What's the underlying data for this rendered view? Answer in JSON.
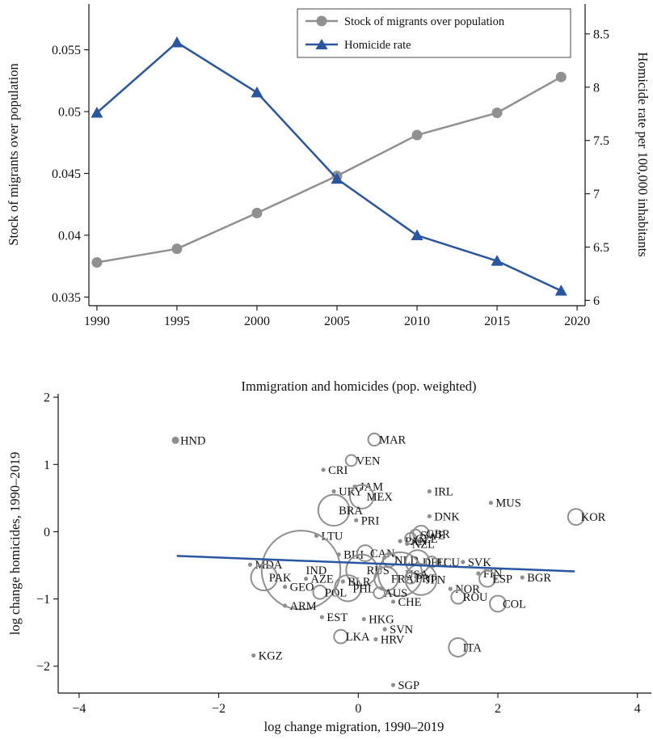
{
  "chart_data": [
    {
      "type": "line",
      "x": [
        1990,
        1995,
        2000,
        2005,
        2010,
        2015,
        2019
      ],
      "series": [
        {
          "name": "Stock of migrants over population",
          "axis": "left",
          "color": "#909090",
          "marker": "circle",
          "values": [
            0.0378,
            0.0389,
            0.0418,
            0.0448,
            0.0481,
            0.0499,
            0.0528
          ]
        },
        {
          "name": "Homicide rate",
          "axis": "right",
          "color": "#2a55a0",
          "marker": "triangle",
          "values": [
            7.76,
            8.42,
            7.95,
            7.14,
            6.61,
            6.37,
            6.09
          ]
        }
      ],
      "xlim": [
        1989.5,
        2020.5
      ],
      "ylim": [
        0.0343,
        0.0587
      ],
      "y2lim": [
        5.95,
        8.78
      ],
      "xticks": [
        "1990",
        "1995",
        "2000",
        "2005",
        "2010",
        "2015",
        "2020"
      ],
      "yticks": [
        "0.035",
        "0.04",
        "0.045",
        "0.05",
        "0.055"
      ],
      "y2ticks": [
        "6",
        "6.5",
        "7",
        "7.5",
        "8",
        "8.5"
      ],
      "xlabel": "",
      "ylabel": "Stock of migrants over population",
      "y2label": "Homicide rate per 100,000 inhabitants",
      "legend": "top-right",
      "grid": false
    },
    {
      "type": "scatter",
      "title": "Immigration and homicides (pop. weighted)",
      "xlabel": "log change migration, 1990–2019",
      "ylabel": "log change homicides, 1990–2019",
      "xlim": [
        -4.3,
        4.2
      ],
      "ylim": [
        -2.4,
        2.05
      ],
      "xticks": [
        "−4",
        "−2",
        "0",
        "2",
        "4"
      ],
      "yticks": [
        "−2",
        "−1",
        "0",
        "1",
        "2"
      ],
      "grid": false,
      "marker_color": "#8f8f8f",
      "fit_color": "#2a55a0",
      "fit_line": {
        "x": [
          -2.6,
          3.1
        ],
        "y": [
          -0.36,
          -0.59
        ]
      },
      "points": [
        {
          "label": "HND",
          "x": -2.62,
          "y": 1.36,
          "size": 1.5
        },
        {
          "label": "MAR",
          "x": 0.23,
          "y": 1.37,
          "size": 3.5
        },
        {
          "label": "VEN",
          "x": -0.1,
          "y": 1.06,
          "size": 3
        },
        {
          "label": "CRI",
          "x": -0.5,
          "y": 0.92,
          "size": 1
        },
        {
          "label": "JAM",
          "x": -0.05,
          "y": 0.67,
          "size": 1
        },
        {
          "label": "URY",
          "x": -0.35,
          "y": 0.6,
          "size": 1
        },
        {
          "label": "MEX",
          "x": 0.05,
          "y": 0.52,
          "size": 8
        },
        {
          "label": "IRL",
          "x": 1.02,
          "y": 0.6,
          "size": 1
        },
        {
          "label": "MUS",
          "x": 1.9,
          "y": 0.43,
          "size": 1
        },
        {
          "label": "KOR",
          "x": 3.12,
          "y": 0.22,
          "size": 5
        },
        {
          "label": "BRA",
          "x": -0.35,
          "y": 0.32,
          "size": 11
        },
        {
          "label": "PRI",
          "x": -0.03,
          "y": 0.17,
          "size": 1
        },
        {
          "label": "DNK",
          "x": 1.02,
          "y": 0.23,
          "size": 1
        },
        {
          "label": "LTU",
          "x": -0.6,
          "y": -0.06,
          "size": 1
        },
        {
          "label": "SWE",
          "x": 0.82,
          "y": -0.05,
          "size": 3
        },
        {
          "label": "CZE",
          "x": 0.75,
          "y": -0.1,
          "size": 3
        },
        {
          "label": "GBR",
          "x": 0.9,
          "y": -0.03,
          "size": 5
        },
        {
          "label": "PAN",
          "x": 0.6,
          "y": -0.14,
          "size": 1
        },
        {
          "label": "NZL",
          "x": 0.7,
          "y": -0.18,
          "size": 1
        },
        {
          "label": "BIH",
          "x": -0.28,
          "y": -0.34,
          "size": 1
        },
        {
          "label": "CAN",
          "x": 0.1,
          "y": -0.32,
          "size": 5
        },
        {
          "label": "NLD",
          "x": 0.45,
          "y": -0.42,
          "size": 4
        },
        {
          "label": "DEU",
          "x": 0.85,
          "y": -0.45,
          "size": 8
        },
        {
          "label": "ECU",
          "x": 1.05,
          "y": -0.45,
          "size": 3
        },
        {
          "label": "SVK",
          "x": 1.5,
          "y": -0.45,
          "size": 1
        },
        {
          "label": "MDA",
          "x": -1.55,
          "y": -0.49,
          "size": 1
        },
        {
          "label": "IND",
          "x": -0.82,
          "y": -0.57,
          "size": 30
        },
        {
          "label": "RUS",
          "x": 0.05,
          "y": -0.57,
          "size": 11
        },
        {
          "label": "USA",
          "x": 0.6,
          "y": -0.63,
          "size": 16
        },
        {
          "label": "FIN",
          "x": 1.72,
          "y": -0.62,
          "size": 1
        },
        {
          "label": "PAK",
          "x": -1.35,
          "y": -0.68,
          "size": 9
        },
        {
          "label": "AZE",
          "x": -0.75,
          "y": -0.7,
          "size": 1
        },
        {
          "label": "BLR",
          "x": -0.22,
          "y": -0.74,
          "size": 1
        },
        {
          "label": "FRA",
          "x": 0.4,
          "y": -0.7,
          "size": 8
        },
        {
          "label": "PRT",
          "x": 0.75,
          "y": -0.69,
          "size": 3
        },
        {
          "label": "JPN",
          "x": 0.9,
          "y": -0.71,
          "size": 11
        },
        {
          "label": "ESP",
          "x": 1.85,
          "y": -0.7,
          "size": 5
        },
        {
          "label": "BGR",
          "x": 2.35,
          "y": -0.68,
          "size": 1
        },
        {
          "label": "GEO",
          "x": -1.05,
          "y": -0.82,
          "size": 1
        },
        {
          "label": "POL",
          "x": -0.55,
          "y": -0.9,
          "size": 4
        },
        {
          "label": "PHL",
          "x": -0.15,
          "y": -0.84,
          "size": 9
        },
        {
          "label": "AUS",
          "x": 0.3,
          "y": -0.91,
          "size": 3
        },
        {
          "label": "NOR",
          "x": 1.32,
          "y": -0.85,
          "size": 1
        },
        {
          "label": "ROU",
          "x": 1.43,
          "y": -0.97,
          "size": 4
        },
        {
          "label": "COL",
          "x": 2.0,
          "y": -1.07,
          "size": 5
        },
        {
          "label": "CHE",
          "x": 0.5,
          "y": -1.04,
          "size": 1
        },
        {
          "label": "ARM",
          "x": -1.05,
          "y": -1.1,
          "size": 1
        },
        {
          "label": "EST",
          "x": -0.52,
          "y": -1.27,
          "size": 1
        },
        {
          "label": "HKG",
          "x": 0.08,
          "y": -1.3,
          "size": 1
        },
        {
          "label": "SVN",
          "x": 0.38,
          "y": -1.45,
          "size": 1
        },
        {
          "label": "LKA",
          "x": -0.25,
          "y": -1.56,
          "size": 4
        },
        {
          "label": "HRV",
          "x": 0.25,
          "y": -1.6,
          "size": 1
        },
        {
          "label": "ITA",
          "x": 1.43,
          "y": -1.72,
          "size": 6
        },
        {
          "label": "KGZ",
          "x": -1.5,
          "y": -1.84,
          "size": 1
        },
        {
          "label": "SGP",
          "x": 0.5,
          "y": -2.28,
          "size": 1
        }
      ]
    }
  ]
}
